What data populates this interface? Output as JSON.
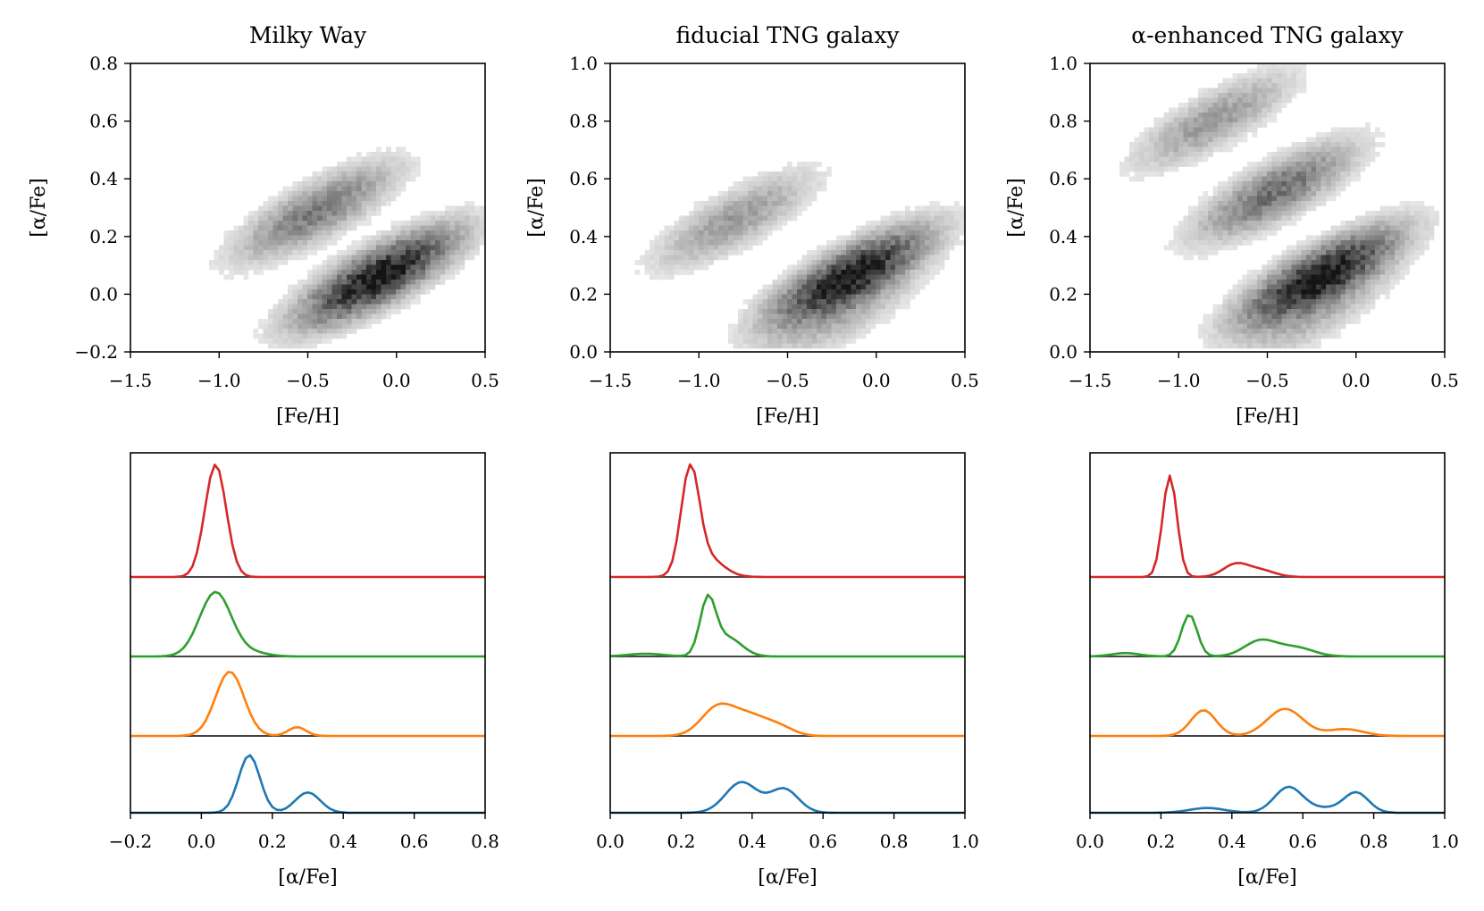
{
  "chart_data": [
    {
      "type": "heatmap",
      "title": "Milky Way",
      "xlabel": "[Fe/H]",
      "ylabel": "[α/Fe]",
      "xlim": [
        -1.5,
        0.5
      ],
      "ylim": [
        -0.2,
        0.8
      ],
      "xticks": [
        "−1.5",
        "−1.0",
        "−0.5",
        "0.0",
        "0.5"
      ],
      "yticks": [
        "−0.2",
        "0.0",
        "0.2",
        "0.4",
        "0.6",
        "0.8"
      ],
      "density_components": [
        {
          "center_feh": -0.1,
          "center_alpha": 0.05,
          "weight": 1.0
        },
        {
          "center_feh": -0.45,
          "center_alpha": 0.28,
          "weight": 0.45
        }
      ]
    },
    {
      "type": "heatmap",
      "title": "fiducial TNG galaxy",
      "xlabel": "[Fe/H]",
      "ylabel": "[α/Fe]",
      "xlim": [
        -1.5,
        0.5
      ],
      "ylim": [
        0.0,
        1.0
      ],
      "xticks": [
        "−1.5",
        "−1.0",
        "−0.5",
        "0.0",
        "0.5"
      ],
      "yticks": [
        "0.0",
        "0.2",
        "0.4",
        "0.6",
        "0.8",
        "1.0"
      ],
      "density_components": [
        {
          "center_feh": -0.15,
          "center_alpha": 0.25,
          "weight": 1.0
        },
        {
          "center_feh": -0.8,
          "center_alpha": 0.45,
          "weight": 0.3
        },
        {
          "center_feh": -0.2,
          "center_alpha": 0.1,
          "weight": 0.15
        }
      ]
    },
    {
      "type": "heatmap",
      "title": "α-enhanced TNG galaxy",
      "xlabel": "[Fe/H]",
      "ylabel": "[α/Fe]",
      "xlim": [
        -1.5,
        0.5
      ],
      "ylim": [
        0.0,
        1.0
      ],
      "xticks": [
        "−1.5",
        "−1.0",
        "−0.5",
        "0.0",
        "0.5"
      ],
      "yticks": [
        "0.0",
        "0.2",
        "0.4",
        "0.6",
        "0.8",
        "1.0"
      ],
      "density_components": [
        {
          "center_feh": -0.2,
          "center_alpha": 0.25,
          "weight": 1.0
        },
        {
          "center_feh": -0.45,
          "center_alpha": 0.55,
          "weight": 0.5
        },
        {
          "center_feh": -0.8,
          "center_alpha": 0.8,
          "weight": 0.3
        },
        {
          "center_feh": -0.25,
          "center_alpha": 0.1,
          "weight": 0.15
        }
      ]
    },
    {
      "type": "line",
      "xlabel": "[α/Fe]",
      "xlim": [
        -0.2,
        0.8
      ],
      "xticks": [
        "−0.2",
        "0.0",
        "0.2",
        "0.4",
        "0.6",
        "0.8"
      ],
      "series": [
        {
          "name": "red",
          "color": "#d62728",
          "peaks": [
            [
              0.04,
              0.03,
              1.0
            ]
          ]
        },
        {
          "name": "green",
          "color": "#2ca02c",
          "peaks": [
            [
              0.04,
              0.045,
              0.95
            ],
            [
              0.15,
              0.04,
              0.05
            ]
          ]
        },
        {
          "name": "orange",
          "color": "#ff7f0e",
          "peaks": [
            [
              0.08,
              0.04,
              0.95
            ],
            [
              0.27,
              0.025,
              0.13
            ]
          ]
        },
        {
          "name": "blue",
          "color": "#1f77b4",
          "peaks": [
            [
              0.135,
              0.03,
              0.85
            ],
            [
              0.3,
              0.035,
              0.3
            ]
          ]
        }
      ]
    },
    {
      "type": "line",
      "xlabel": "[α/Fe]",
      "xlim": [
        0.0,
        1.0
      ],
      "xticks": [
        "0.0",
        "0.2",
        "0.4",
        "0.6",
        "0.8",
        "1.0"
      ],
      "series": [
        {
          "name": "red",
          "color": "#d62728",
          "peaks": [
            [
              0.225,
              0.025,
              0.9
            ],
            [
              0.27,
              0.045,
              0.18
            ]
          ]
        },
        {
          "name": "green",
          "color": "#2ca02c",
          "peaks": [
            [
              0.275,
              0.022,
              0.8
            ],
            [
              0.33,
              0.04,
              0.28
            ],
            [
              0.1,
              0.05,
              0.04
            ]
          ]
        },
        {
          "name": "orange",
          "color": "#ff7f0e",
          "peaks": [
            [
              0.3,
              0.045,
              0.38
            ],
            [
              0.39,
              0.055,
              0.3
            ],
            [
              0.48,
              0.04,
              0.1
            ]
          ]
        },
        {
          "name": "blue",
          "color": "#1f77b4",
          "peaks": [
            [
              0.37,
              0.045,
              0.45
            ],
            [
              0.49,
              0.04,
              0.35
            ]
          ]
        }
      ]
    },
    {
      "type": "line",
      "xlabel": "[α/Fe]",
      "xlim": [
        0.0,
        1.0
      ],
      "xticks": [
        "0.0",
        "0.2",
        "0.4",
        "0.6",
        "0.8",
        "1.0"
      ],
      "series": [
        {
          "name": "red",
          "color": "#d62728",
          "peaks": [
            [
              0.225,
              0.02,
              0.9
            ],
            [
              0.41,
              0.035,
              0.11
            ],
            [
              0.48,
              0.04,
              0.06
            ]
          ]
        },
        {
          "name": "green",
          "color": "#2ca02c",
          "peaks": [
            [
              0.28,
              0.022,
              0.62
            ],
            [
              0.48,
              0.045,
              0.23
            ],
            [
              0.58,
              0.05,
              0.13
            ],
            [
              0.1,
              0.04,
              0.05
            ]
          ]
        },
        {
          "name": "orange",
          "color": "#ff7f0e",
          "peaks": [
            [
              0.32,
              0.035,
              0.38
            ],
            [
              0.55,
              0.05,
              0.4
            ],
            [
              0.72,
              0.05,
              0.1
            ]
          ]
        },
        {
          "name": "blue",
          "color": "#1f77b4",
          "peaks": [
            [
              0.33,
              0.05,
              0.07
            ],
            [
              0.56,
              0.04,
              0.38
            ],
            [
              0.75,
              0.035,
              0.3
            ],
            [
              0.66,
              0.04,
              0.06
            ]
          ]
        }
      ]
    }
  ]
}
